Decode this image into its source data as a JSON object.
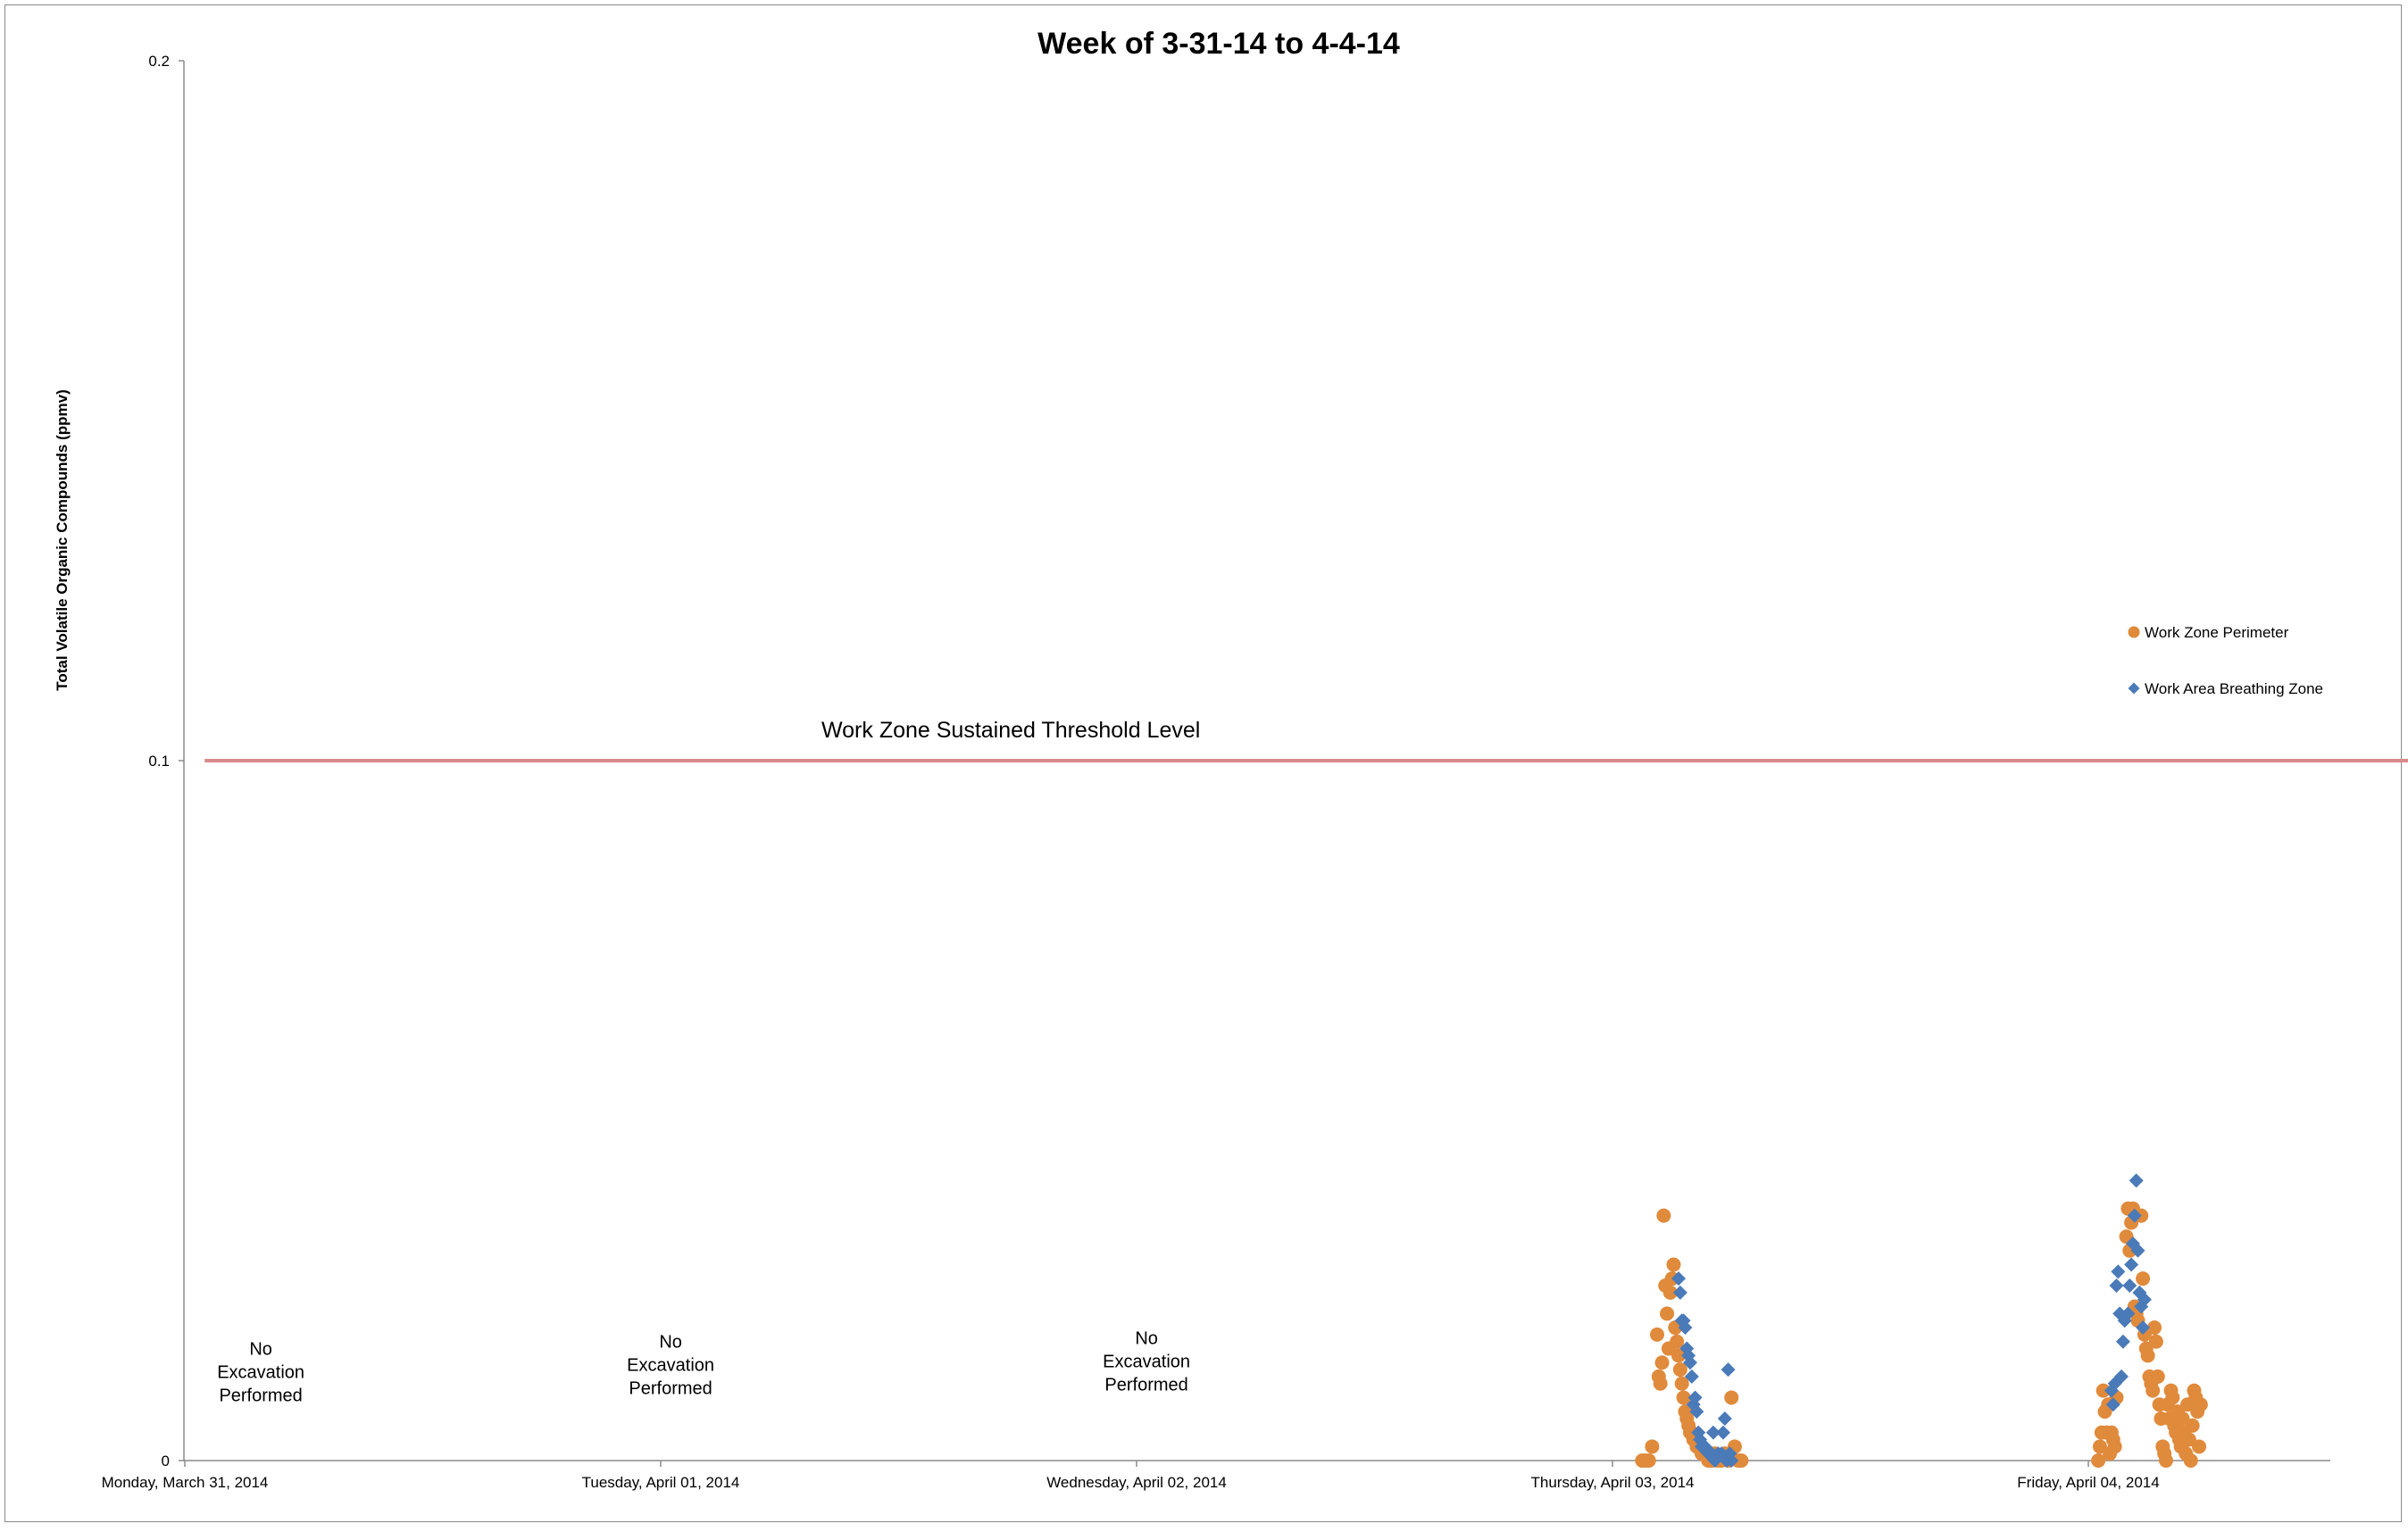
{
  "chart_data": {
    "type": "scatter",
    "title": "Week of 3-31-14 to 4-4-14",
    "ylabel": "Total Volatile Organic Compounds (ppmv)",
    "xlabel": "",
    "x_type": "datetime",
    "xlim": [
      "2014-03-31T00:00",
      "2014-04-04T23:59"
    ],
    "ylim": [
      0,
      0.2
    ],
    "y_ticks": [
      {
        "value": 0,
        "label": "0"
      },
      {
        "value": 0.1,
        "label": "0.1"
      },
      {
        "value": 0.2,
        "label": "0.2"
      }
    ],
    "x_ticks": [
      {
        "value": "2014-03-31T00:00",
        "label": "Monday, March 31, 2014"
      },
      {
        "value": "2014-04-01T00:00",
        "label": "Tuesday, April 01, 2014"
      },
      {
        "value": "2014-04-02T00:00",
        "label": "Wednesday, April 02, 2014"
      },
      {
        "value": "2014-04-03T00:00",
        "label": "Thursday, April 03, 2014"
      },
      {
        "value": "2014-04-04T00:00",
        "label": "Friday, April 04, 2014"
      }
    ],
    "grid": false,
    "legend": "right",
    "threshold": {
      "value": 0.1,
      "label": "Work Zone Sustained Threshold Level",
      "color": "#d98b8b",
      "x_start": "2014-03-31T01:00",
      "x_end": "2014-04-04T23:40"
    },
    "annotations": [
      {
        "x": "2014-03-31T03:50",
        "y": 0.0085,
        "lines": [
          "No",
          "Excavation",
          "Performed"
        ]
      },
      {
        "x": "2014-04-01T00:30",
        "y": 0.0095,
        "lines": [
          "No",
          "Excavation",
          "Performed"
        ]
      },
      {
        "x": "2014-04-02T00:30",
        "y": 0.01,
        "lines": [
          "No",
          "Excavation",
          "Performed"
        ]
      }
    ],
    "series": [
      {
        "name": "Work Zone Perimeter",
        "marker": "circle",
        "color": "#e08a3c",
        "points": [
          [
            "2014-04-03T01:30",
            0.0
          ],
          [
            "2014-04-03T01:40",
            0.0
          ],
          [
            "2014-04-03T01:50",
            0.0
          ],
          [
            "2014-04-03T02:00",
            0.002
          ],
          [
            "2014-04-03T02:15",
            0.018
          ],
          [
            "2014-04-03T02:20",
            0.012
          ],
          [
            "2014-04-03T02:25",
            0.011
          ],
          [
            "2014-04-03T02:30",
            0.014
          ],
          [
            "2014-04-03T02:35",
            0.035
          ],
          [
            "2014-04-03T02:40",
            0.025
          ],
          [
            "2014-04-03T02:45",
            0.021
          ],
          [
            "2014-04-03T02:50",
            0.016
          ],
          [
            "2014-04-03T02:55",
            0.024
          ],
          [
            "2014-04-03T03:00",
            0.026
          ],
          [
            "2014-04-03T03:05",
            0.028
          ],
          [
            "2014-04-03T03:10",
            0.019
          ],
          [
            "2014-04-03T03:15",
            0.017
          ],
          [
            "2014-04-03T03:20",
            0.015
          ],
          [
            "2014-04-03T03:25",
            0.013
          ],
          [
            "2014-04-03T03:30",
            0.011
          ],
          [
            "2014-04-03T03:35",
            0.009
          ],
          [
            "2014-04-03T03:40",
            0.007
          ],
          [
            "2014-04-03T03:45",
            0.006
          ],
          [
            "2014-04-03T03:50",
            0.005
          ],
          [
            "2014-04-03T03:55",
            0.004
          ],
          [
            "2014-04-03T04:00",
            0.004
          ],
          [
            "2014-04-03T04:05",
            0.003
          ],
          [
            "2014-04-03T04:10",
            0.003
          ],
          [
            "2014-04-03T04:15",
            0.002
          ],
          [
            "2014-04-03T04:20",
            0.002
          ],
          [
            "2014-04-03T04:30",
            0.001
          ],
          [
            "2014-04-03T04:40",
            0.001
          ],
          [
            "2014-04-03T04:50",
            0.0
          ],
          [
            "2014-04-03T05:00",
            0.0
          ],
          [
            "2014-04-03T05:10",
            0.001
          ],
          [
            "2014-04-03T05:20",
            0.0
          ],
          [
            "2014-04-03T05:30",
            0.0
          ],
          [
            "2014-04-03T05:40",
            0.001
          ],
          [
            "2014-04-03T05:50",
            0.0
          ],
          [
            "2014-04-03T06:00",
            0.009
          ],
          [
            "2014-04-03T06:10",
            0.002
          ],
          [
            "2014-04-03T06:20",
            0.0
          ],
          [
            "2014-04-03T06:30",
            0.0
          ],
          [
            "2014-04-04T00:30",
            0.0
          ],
          [
            "2014-04-04T00:35",
            0.002
          ],
          [
            "2014-04-04T00:40",
            0.004
          ],
          [
            "2014-04-04T00:45",
            0.01
          ],
          [
            "2014-04-04T00:50",
            0.007
          ],
          [
            "2014-04-04T00:55",
            0.004
          ],
          [
            "2014-04-04T01:00",
            0.008
          ],
          [
            "2014-04-04T01:05",
            0.001
          ],
          [
            "2014-04-04T01:10",
            0.004
          ],
          [
            "2014-04-04T01:15",
            0.003
          ],
          [
            "2014-04-04T01:20",
            0.002
          ],
          [
            "2014-04-04T01:25",
            0.009
          ],
          [
            "2014-04-04T01:55",
            0.032
          ],
          [
            "2014-04-04T02:00",
            0.036
          ],
          [
            "2014-04-04T02:05",
            0.03
          ],
          [
            "2014-04-04T02:10",
            0.034
          ],
          [
            "2014-04-04T02:15",
            0.036
          ],
          [
            "2014-04-04T02:20",
            0.022
          ],
          [
            "2014-04-04T02:25",
            0.021
          ],
          [
            "2014-04-04T02:30",
            0.02
          ],
          [
            "2014-04-04T02:40",
            0.035
          ],
          [
            "2014-04-04T02:45",
            0.026
          ],
          [
            "2014-04-04T02:50",
            0.018
          ],
          [
            "2014-04-04T02:55",
            0.016
          ],
          [
            "2014-04-04T03:00",
            0.015
          ],
          [
            "2014-04-04T03:05",
            0.012
          ],
          [
            "2014-04-04T03:10",
            0.011
          ],
          [
            "2014-04-04T03:15",
            0.01
          ],
          [
            "2014-04-04T03:20",
            0.019
          ],
          [
            "2014-04-04T03:25",
            0.017
          ],
          [
            "2014-04-04T03:30",
            0.012
          ],
          [
            "2014-04-04T03:35",
            0.008
          ],
          [
            "2014-04-04T03:40",
            0.006
          ],
          [
            "2014-04-04T03:45",
            0.002
          ],
          [
            "2014-04-04T03:50",
            0.001
          ],
          [
            "2014-04-04T03:55",
            0.0
          ],
          [
            "2014-04-04T04:00",
            0.008
          ],
          [
            "2014-04-04T04:05",
            0.006
          ],
          [
            "2014-04-04T04:10",
            0.01
          ],
          [
            "2014-04-04T04:15",
            0.009
          ],
          [
            "2014-04-04T04:20",
            0.005
          ],
          [
            "2014-04-04T04:25",
            0.004
          ],
          [
            "2014-04-04T04:30",
            0.007
          ],
          [
            "2014-04-04T04:35",
            0.003
          ],
          [
            "2014-04-04T04:40",
            0.002
          ],
          [
            "2014-04-04T04:45",
            0.006
          ],
          [
            "2014-04-04T04:50",
            0.004
          ],
          [
            "2014-04-04T04:55",
            0.001
          ],
          [
            "2014-04-04T05:00",
            0.008
          ],
          [
            "2014-04-04T05:05",
            0.003
          ],
          [
            "2014-04-04T05:10",
            0.0
          ],
          [
            "2014-04-04T05:15",
            0.005
          ],
          [
            "2014-04-04T05:20",
            0.01
          ],
          [
            "2014-04-04T05:25",
            0.009
          ],
          [
            "2014-04-04T05:30",
            0.007
          ],
          [
            "2014-04-04T05:35",
            0.002
          ],
          [
            "2014-04-04T05:40",
            0.008
          ]
        ]
      },
      {
        "name": "Work Area Breathing Zone",
        "marker": "diamond",
        "color": "#4a7ab8",
        "points": [
          [
            "2014-04-03T03:20",
            0.026
          ],
          [
            "2014-04-03T03:25",
            0.024
          ],
          [
            "2014-04-03T03:30",
            0.02
          ],
          [
            "2014-04-03T03:35",
            0.02
          ],
          [
            "2014-04-03T03:40",
            0.019
          ],
          [
            "2014-04-03T03:45",
            0.016
          ],
          [
            "2014-04-03T03:50",
            0.015
          ],
          [
            "2014-04-03T03:55",
            0.014
          ],
          [
            "2014-04-03T04:00",
            0.012
          ],
          [
            "2014-04-03T04:05",
            0.008
          ],
          [
            "2014-04-03T04:10",
            0.009
          ],
          [
            "2014-04-03T04:15",
            0.007
          ],
          [
            "2014-04-03T04:20",
            0.004
          ],
          [
            "2014-04-03T04:25",
            0.003
          ],
          [
            "2014-04-03T04:30",
            0.002
          ],
          [
            "2014-04-03T04:40",
            0.002
          ],
          [
            "2014-04-03T04:50",
            0.001
          ],
          [
            "2014-04-03T05:00",
            0.001
          ],
          [
            "2014-04-03T05:05",
            0.004
          ],
          [
            "2014-04-03T05:10",
            0.0
          ],
          [
            "2014-04-03T05:20",
            0.001
          ],
          [
            "2014-04-03T05:30",
            0.001
          ],
          [
            "2014-04-03T05:35",
            0.004
          ],
          [
            "2014-04-03T05:40",
            0.006
          ],
          [
            "2014-04-03T05:45",
            0.0
          ],
          [
            "2014-04-03T05:50",
            0.013
          ],
          [
            "2014-04-03T05:55",
            0.001
          ],
          [
            "2014-04-03T06:00",
            0.0
          ],
          [
            "2014-04-04T01:10",
            0.01
          ],
          [
            "2014-04-04T01:15",
            0.008
          ],
          [
            "2014-04-04T01:20",
            0.011
          ],
          [
            "2014-04-04T01:25",
            0.025
          ],
          [
            "2014-04-04T01:30",
            0.027
          ],
          [
            "2014-04-04T01:35",
            0.021
          ],
          [
            "2014-04-04T01:40",
            0.012
          ],
          [
            "2014-04-04T01:45",
            0.017
          ],
          [
            "2014-04-04T01:50",
            0.02
          ],
          [
            "2014-04-04T02:00",
            0.021
          ],
          [
            "2014-04-04T02:05",
            0.025
          ],
          [
            "2014-04-04T02:10",
            0.028
          ],
          [
            "2014-04-04T02:15",
            0.031
          ],
          [
            "2014-04-04T02:20",
            0.035
          ],
          [
            "2014-04-04T02:25",
            0.04
          ],
          [
            "2014-04-04T02:30",
            0.03
          ],
          [
            "2014-04-04T02:35",
            0.024
          ],
          [
            "2014-04-04T02:40",
            0.022
          ],
          [
            "2014-04-04T02:45",
            0.019
          ],
          [
            "2014-04-04T02:50",
            0.023
          ]
        ]
      }
    ]
  }
}
